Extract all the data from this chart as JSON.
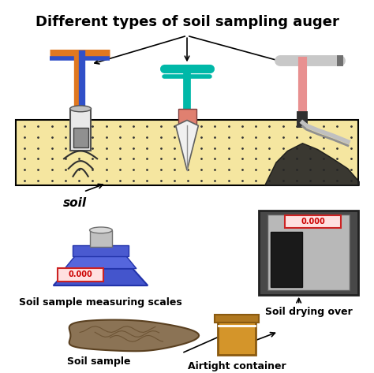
{
  "title": "Different types of soil sampling auger",
  "title_fontsize": 13,
  "title_fontweight": "bold",
  "bg_color": "#ffffff",
  "soil_color": "#f5e6a0",
  "dot_color": "#333333",
  "label_soil": "soil",
  "label_scales": "Soil sample measuring scales",
  "label_sample": "Soil sample",
  "label_container": "Airtight container",
  "label_oven": "Soil drying over",
  "display_text": "0.000"
}
